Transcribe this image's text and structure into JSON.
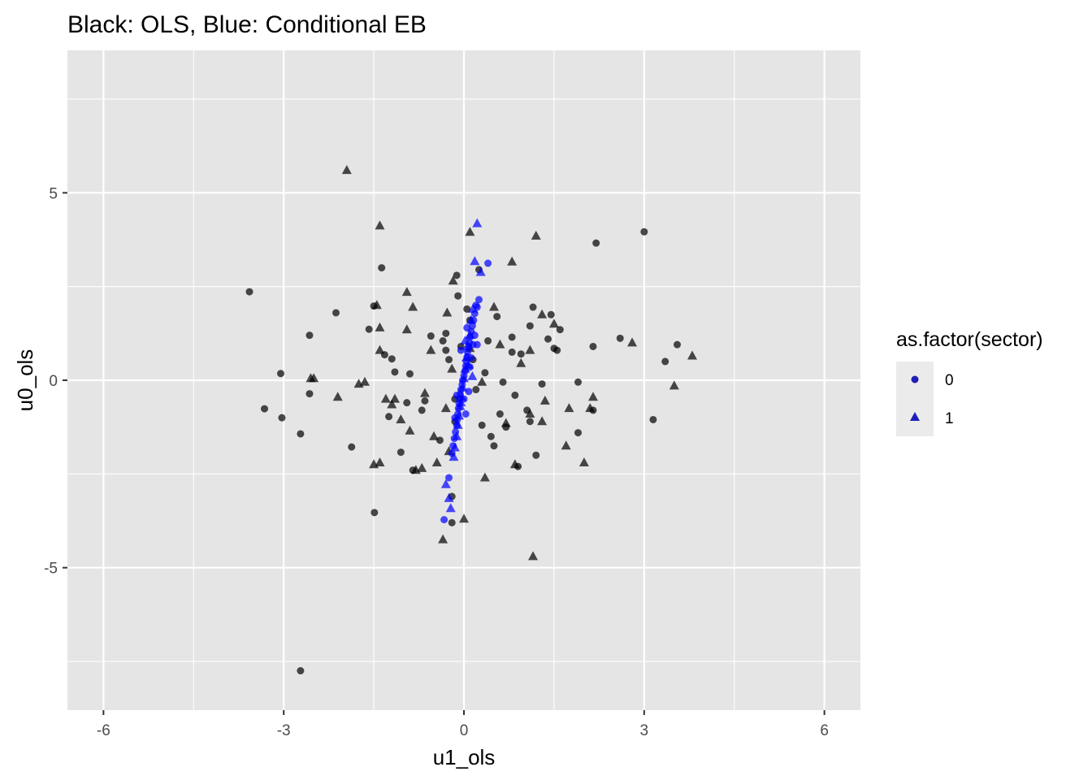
{
  "chart_data": {
    "type": "scatter",
    "title": "Black: OLS, Blue: Conditional EB",
    "xlabel": "u1_ols",
    "ylabel": "u0_ols",
    "xlim": [
      -6.6,
      6.6
    ],
    "ylim": [
      -8.8,
      8.8
    ],
    "x_major_ticks": [
      -6,
      -3,
      0,
      3,
      6
    ],
    "x_tick_labels": [
      "-6",
      "-3",
      "0",
      "3",
      "6"
    ],
    "x_minor_ticks": [
      -4.5,
      -1.5,
      1.5,
      4.5
    ],
    "y_major_ticks": [
      -5,
      0,
      5
    ],
    "y_tick_labels": [
      "-5",
      "0",
      "5"
    ],
    "y_minor_ticks": [
      -7.5,
      -2.5,
      2.5,
      7.5
    ],
    "grid": true,
    "colors": {
      "panel_bg": "#e5e5e5",
      "grid": "#ffffff",
      "ols": "#000000",
      "eb": "#0000ff",
      "legend_key": "#1f1fb8",
      "legend_bg": "#ebebeb",
      "tick": "#333333"
    },
    "legend": {
      "title": "as.factor(sector)",
      "position": "right",
      "entries": [
        {
          "label": "0",
          "shape": "circle"
        },
        {
          "label": "1",
          "shape": "triangle"
        }
      ]
    },
    "series": [
      {
        "name": "OLS sector 0",
        "color": "#000000",
        "shape": "circle",
        "points": [
          [
            -3.57,
            2.36
          ],
          [
            -3.05,
            0.18
          ],
          [
            -3.03,
            -1.0
          ],
          [
            -3.32,
            -0.76
          ],
          [
            -2.72,
            -7.75
          ],
          [
            -2.72,
            -1.43
          ],
          [
            -2.57,
            1.2
          ],
          [
            -2.57,
            -0.36
          ],
          [
            -2.13,
            1.8
          ],
          [
            -1.87,
            -1.78
          ],
          [
            -1.58,
            1.36
          ],
          [
            -1.5,
            1.98
          ],
          [
            -1.49,
            -3.53
          ],
          [
            -1.37,
            3.0
          ],
          [
            -1.32,
            0.68
          ],
          [
            -1.25,
            -0.97
          ],
          [
            -1.2,
            0.57
          ],
          [
            -1.15,
            0.22
          ],
          [
            -1.05,
            -1.92
          ],
          [
            -0.95,
            -0.6
          ],
          [
            -0.9,
            0.17
          ],
          [
            -0.85,
            -2.4
          ],
          [
            -0.7,
            -0.8
          ],
          [
            -0.65,
            -0.55
          ],
          [
            -0.55,
            1.18
          ],
          [
            -0.4,
            -1.6
          ],
          [
            -0.35,
            1.05
          ],
          [
            -0.3,
            0.8
          ],
          [
            -0.3,
            1.25
          ],
          [
            -0.25,
            0.55
          ],
          [
            -0.2,
            -3.1
          ],
          [
            -0.2,
            -3.8
          ],
          [
            -0.15,
            -1.1
          ],
          [
            -0.15,
            -0.5
          ],
          [
            -0.12,
            2.8
          ],
          [
            -0.1,
            2.25
          ],
          [
            -0.05,
            0.9
          ],
          [
            0.05,
            1.9
          ],
          [
            0.1,
            1.6
          ],
          [
            0.15,
            0.55
          ],
          [
            0.2,
            -0.25
          ],
          [
            0.25,
            2.95
          ],
          [
            0.3,
            -1.2
          ],
          [
            0.35,
            0.2
          ],
          [
            0.4,
            1.05
          ],
          [
            0.45,
            -1.5
          ],
          [
            0.5,
            -1.75
          ],
          [
            0.55,
            1.7
          ],
          [
            0.6,
            -0.9
          ],
          [
            0.65,
            -0.05
          ],
          [
            0.7,
            -1.25
          ],
          [
            0.8,
            1.15
          ],
          [
            0.8,
            0.75
          ],
          [
            0.85,
            -0.4
          ],
          [
            0.9,
            -2.3
          ],
          [
            0.95,
            0.7
          ],
          [
            1.05,
            -0.8
          ],
          [
            1.1,
            -1.1
          ],
          [
            1.1,
            1.45
          ],
          [
            1.15,
            1.95
          ],
          [
            1.2,
            -2.0
          ],
          [
            1.3,
            -0.1
          ],
          [
            1.4,
            1.1
          ],
          [
            1.5,
            0.85
          ],
          [
            1.55,
            0.8
          ],
          [
            1.6,
            1.35
          ],
          [
            1.45,
            1.75
          ],
          [
            1.9,
            -0.05
          ],
          [
            1.9,
            -1.4
          ],
          [
            2.15,
            0.9
          ],
          [
            2.15,
            -0.8
          ],
          [
            2.2,
            3.66
          ],
          [
            2.6,
            1.12
          ],
          [
            3.0,
            3.96
          ],
          [
            3.15,
            -1.05
          ],
          [
            3.35,
            0.5
          ],
          [
            3.55,
            0.95
          ]
        ]
      },
      {
        "name": "OLS sector 1",
        "color": "#000000",
        "shape": "triangle",
        "points": [
          [
            -1.95,
            5.6
          ],
          [
            -1.4,
            4.12
          ],
          [
            -2.5,
            0.05
          ],
          [
            -2.55,
            0.05
          ],
          [
            -2.1,
            -0.45
          ],
          [
            -1.75,
            -0.1
          ],
          [
            -1.65,
            -0.05
          ],
          [
            -1.5,
            -2.25
          ],
          [
            -1.45,
            2.0
          ],
          [
            -1.4,
            1.4
          ],
          [
            -1.4,
            0.8
          ],
          [
            -1.4,
            -2.2
          ],
          [
            -1.3,
            -0.5
          ],
          [
            -1.2,
            -0.65
          ],
          [
            -1.15,
            -0.5
          ],
          [
            -1.05,
            -1.05
          ],
          [
            -0.95,
            1.35
          ],
          [
            -0.95,
            2.35
          ],
          [
            -0.9,
            -1.35
          ],
          [
            -0.85,
            1.95
          ],
          [
            -0.8,
            -2.4
          ],
          [
            -0.7,
            -2.35
          ],
          [
            -0.65,
            -0.35
          ],
          [
            -0.55,
            0.8
          ],
          [
            -0.5,
            -1.5
          ],
          [
            -0.45,
            -2.2
          ],
          [
            -0.35,
            -4.25
          ],
          [
            -0.3,
            -0.75
          ],
          [
            -0.28,
            1.8
          ],
          [
            -0.25,
            -1.9
          ],
          [
            -0.2,
            0.3
          ],
          [
            -0.18,
            2.65
          ],
          [
            0.0,
            -3.7
          ],
          [
            0.1,
            3.95
          ],
          [
            0.1,
            0.85
          ],
          [
            0.3,
            -0.05
          ],
          [
            0.35,
            -2.6
          ],
          [
            0.5,
            1.95
          ],
          [
            0.6,
            0.95
          ],
          [
            0.7,
            -1.15
          ],
          [
            0.8,
            3.16
          ],
          [
            0.85,
            -2.25
          ],
          [
            0.95,
            0.45
          ],
          [
            1.1,
            -0.9
          ],
          [
            1.1,
            0.8
          ],
          [
            1.15,
            -4.7
          ],
          [
            1.2,
            3.85
          ],
          [
            1.3,
            -1.1
          ],
          [
            1.3,
            1.75
          ],
          [
            1.35,
            -0.55
          ],
          [
            1.5,
            1.5
          ],
          [
            1.7,
            -1.75
          ],
          [
            1.75,
            -0.75
          ],
          [
            2.0,
            -2.2
          ],
          [
            2.1,
            -0.75
          ],
          [
            2.15,
            -0.45
          ],
          [
            2.8,
            1.0
          ],
          [
            3.5,
            -0.15
          ],
          [
            3.8,
            0.65
          ]
        ]
      },
      {
        "name": "EB sector 0",
        "color": "#0000ff",
        "shape": "circle",
        "points": [
          [
            0.4,
            3.12
          ],
          [
            0.25,
            2.15
          ],
          [
            0.22,
            1.95
          ],
          [
            0.18,
            1.78
          ],
          [
            0.16,
            1.6
          ],
          [
            0.14,
            1.45
          ],
          [
            0.12,
            1.3
          ],
          [
            0.1,
            1.15
          ],
          [
            0.09,
            1.0
          ],
          [
            0.08,
            0.88
          ],
          [
            0.06,
            0.75
          ],
          [
            0.05,
            0.62
          ],
          [
            0.04,
            0.5
          ],
          [
            0.03,
            0.38
          ],
          [
            0.02,
            0.25
          ],
          [
            0.0,
            0.12
          ],
          [
            -0.02,
            0.0
          ],
          [
            -0.03,
            -0.12
          ],
          [
            -0.05,
            -0.25
          ],
          [
            -0.06,
            -0.38
          ],
          [
            -0.07,
            -0.5
          ],
          [
            -0.08,
            -0.62
          ],
          [
            -0.09,
            -0.75
          ],
          [
            -0.1,
            -0.9
          ],
          [
            -0.11,
            -1.05
          ],
          [
            -0.12,
            -1.2
          ],
          [
            -0.14,
            -1.38
          ],
          [
            -0.16,
            -1.55
          ],
          [
            -0.18,
            -1.75
          ],
          [
            -0.2,
            -1.95
          ],
          [
            -0.33,
            -3.72
          ],
          [
            -0.25,
            -2.6
          ],
          [
            0.1,
            0.35
          ],
          [
            0.15,
            0.95
          ],
          [
            0.05,
            1.4
          ],
          [
            0.2,
            2.0
          ],
          [
            0.0,
            -0.5
          ],
          [
            -0.05,
            0.8
          ],
          [
            0.12,
            0.6
          ],
          [
            0.08,
            -0.3
          ],
          [
            -0.12,
            -0.4
          ],
          [
            0.03,
            -0.9
          ],
          [
            0.18,
            1.2
          ],
          [
            -0.15,
            -1.0
          ],
          [
            0.22,
            0.95
          ]
        ]
      },
      {
        "name": "EB sector 1",
        "color": "#0000ff",
        "shape": "triangle",
        "points": [
          [
            0.22,
            4.18
          ],
          [
            0.18,
            3.17
          ],
          [
            0.28,
            2.88
          ],
          [
            0.15,
            1.9
          ],
          [
            0.12,
            1.6
          ],
          [
            0.1,
            1.2
          ],
          [
            0.06,
            0.9
          ],
          [
            0.04,
            0.6
          ],
          [
            0.02,
            0.3
          ],
          [
            0.0,
            0.05
          ],
          [
            -0.02,
            -0.2
          ],
          [
            -0.04,
            -0.45
          ],
          [
            -0.06,
            -0.7
          ],
          [
            -0.08,
            -0.95
          ],
          [
            -0.1,
            -1.2
          ],
          [
            -0.12,
            -1.5
          ],
          [
            -0.15,
            -1.8
          ],
          [
            -0.17,
            -2.05
          ],
          [
            -0.3,
            -2.78
          ],
          [
            -0.25,
            -3.15
          ],
          [
            -0.22,
            -3.42
          ],
          [
            0.08,
            0.4
          ],
          [
            -0.05,
            -0.6
          ],
          [
            0.02,
            1.05
          ],
          [
            0.14,
            0.1
          ]
        ]
      }
    ]
  }
}
